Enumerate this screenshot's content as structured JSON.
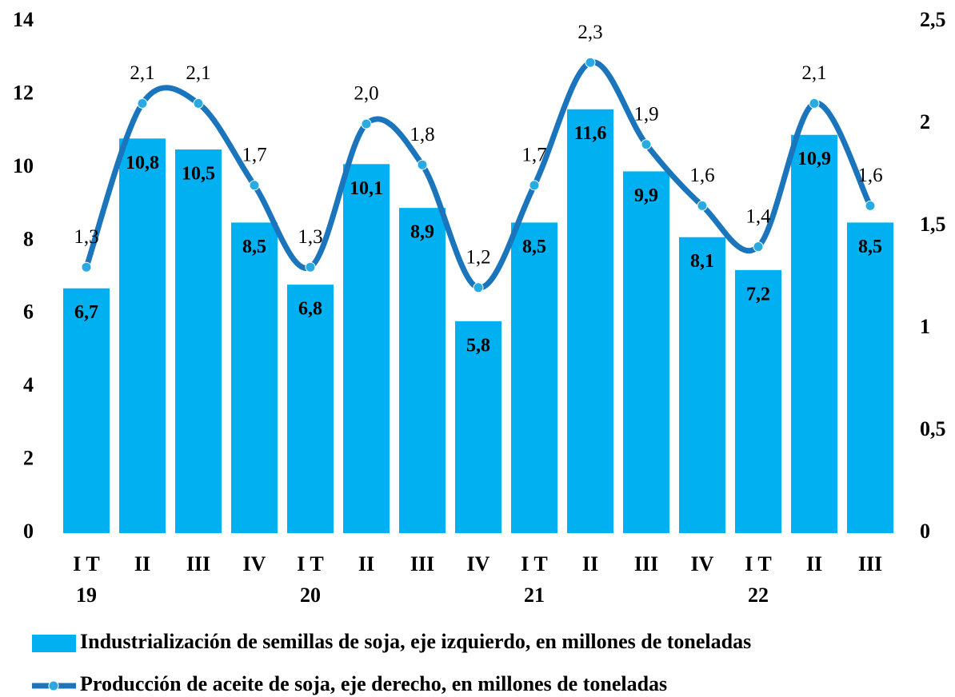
{
  "chart_data": {
    "type": "bar-line",
    "categories": [
      "I T\n19",
      "II",
      "III",
      "IV",
      "I T\n20",
      "II",
      "III",
      "IV",
      "I T\n21",
      "II",
      "III",
      "IV",
      "I T\n22",
      "II",
      "III"
    ],
    "series": [
      {
        "name": "Industrialización de semillas de soja, eje izquierdo, en millones de toneladas",
        "type": "bar",
        "color": "#00b0f0",
        "values": [
          6.7,
          10.8,
          10.5,
          8.5,
          6.8,
          10.1,
          8.9,
          5.8,
          8.5,
          11.6,
          9.9,
          8.1,
          7.2,
          10.9,
          8.5
        ],
        "value_labels": [
          "6,7",
          "10,8",
          "10,5",
          "8,5",
          "6,8",
          "10,1",
          "8,9",
          "5,8",
          "8,5",
          "11,6",
          "9,9",
          "8,1",
          "7,2",
          "10,9",
          "8,5"
        ]
      },
      {
        "name": "Producción de aceite de soja, eje derecho, en millones de toneladas",
        "type": "line",
        "axis": "y2",
        "color": "#1b75bc",
        "marker_color": "#29abe2",
        "values": [
          1.3,
          2.1,
          2.1,
          1.7,
          1.3,
          2.0,
          1.8,
          1.2,
          1.7,
          2.3,
          1.9,
          1.6,
          1.4,
          2.1,
          1.6
        ],
        "value_labels": [
          "1,3",
          "2,1",
          "2,1",
          "1,7",
          "1,3",
          "2,0",
          "1,8",
          "1,2",
          "1,7",
          "2,3",
          "1,9",
          "1,6",
          "1,4",
          "2,1",
          "1,6"
        ]
      }
    ],
    "ylim": [
      0,
      14
    ],
    "yticks": [
      0,
      2,
      4,
      6,
      8,
      10,
      12,
      14
    ],
    "y2lim": [
      0,
      2.5
    ],
    "y2ticks": [
      0,
      {
        "value": 0.5,
        "label": "0,5"
      },
      1,
      {
        "value": 1.5,
        "label": "1,5"
      },
      2,
      {
        "value": 2.5,
        "label": "2,5"
      }
    ]
  }
}
